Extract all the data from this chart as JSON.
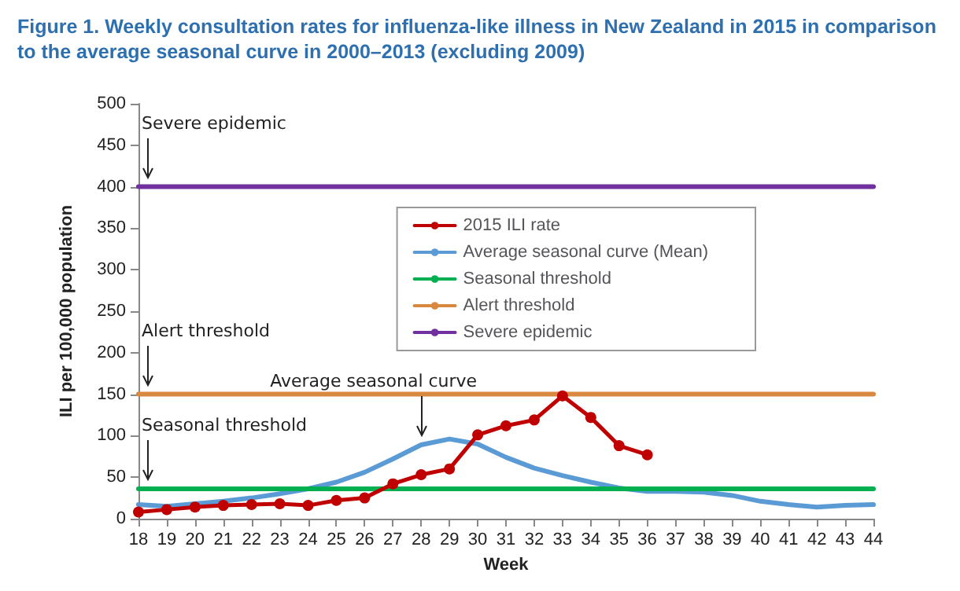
{
  "chart_data": {
    "type": "line",
    "title": "Figure 1. Weekly consultation rates for influenza-like illness in New Zealand in 2015 in comparison to the average seasonal curve in 2000–2013 (excluding 2009)",
    "xlabel": "Week",
    "ylabel": "ILI per 100,000 population",
    "categories": [
      "18",
      "19",
      "20",
      "21",
      "22",
      "23",
      "24",
      "25",
      "26",
      "27",
      "28",
      "29",
      "30",
      "31",
      "32",
      "33",
      "34",
      "35",
      "36",
      "37",
      "38",
      "39",
      "40",
      "41",
      "42",
      "43",
      "44"
    ],
    "series": [
      {
        "name": "2015 ILI rate",
        "color": "#c00000",
        "marker": "circle",
        "values": [
          8,
          11,
          14,
          16,
          17,
          18,
          16,
          22,
          25,
          42,
          53,
          60,
          101,
          112,
          119,
          148,
          122,
          88,
          77,
          null,
          null,
          null,
          null,
          null,
          null,
          null,
          null
        ]
      },
      {
        "name": "Average seasonal curve (Mean)",
        "color": "#5b9bd5",
        "marker": "none",
        "values": [
          17,
          15,
          18,
          21,
          25,
          30,
          36,
          44,
          56,
          72,
          89,
          96,
          90,
          74,
          61,
          52,
          44,
          37,
          33,
          33,
          32,
          28,
          21,
          17,
          14,
          16,
          17
        ]
      },
      {
        "name": "Seasonal threshold",
        "color": "#00b050",
        "marker": "none",
        "values": [
          36,
          36,
          36,
          36,
          36,
          36,
          36,
          36,
          36,
          36,
          36,
          36,
          36,
          36,
          36,
          36,
          36,
          36,
          36,
          36,
          36,
          36,
          36,
          36,
          36,
          36,
          36
        ]
      },
      {
        "name": "Alert threshold",
        "color": "#d9883f",
        "marker": "none",
        "values": [
          150,
          150,
          150,
          150,
          150,
          150,
          150,
          150,
          150,
          150,
          150,
          150,
          150,
          150,
          150,
          150,
          150,
          150,
          150,
          150,
          150,
          150,
          150,
          150,
          150,
          150,
          150
        ]
      },
      {
        "name": "Severe epidemic",
        "color": "#7030a0",
        "marker": "none",
        "values": [
          400,
          400,
          400,
          400,
          400,
          400,
          400,
          400,
          400,
          400,
          400,
          400,
          400,
          400,
          400,
          400,
          400,
          400,
          400,
          400,
          400,
          400,
          400,
          400,
          400,
          400,
          400
        ]
      }
    ],
    "annotations": [
      {
        "text": "Severe epidemic",
        "x": "18",
        "y": 400
      },
      {
        "text": "Alert threshold",
        "x": "18",
        "y": 150
      },
      {
        "text": "Seasonal threshold",
        "x": "18",
        "y": 36
      },
      {
        "text": "Average seasonal curve",
        "x": "28",
        "y": 89
      }
    ],
    "ylim": [
      0,
      500
    ],
    "yticks": [
      0,
      50,
      100,
      150,
      200,
      250,
      300,
      350,
      400,
      450,
      500
    ],
    "grid": false,
    "legend": "top right",
    "line_style": "solid"
  }
}
